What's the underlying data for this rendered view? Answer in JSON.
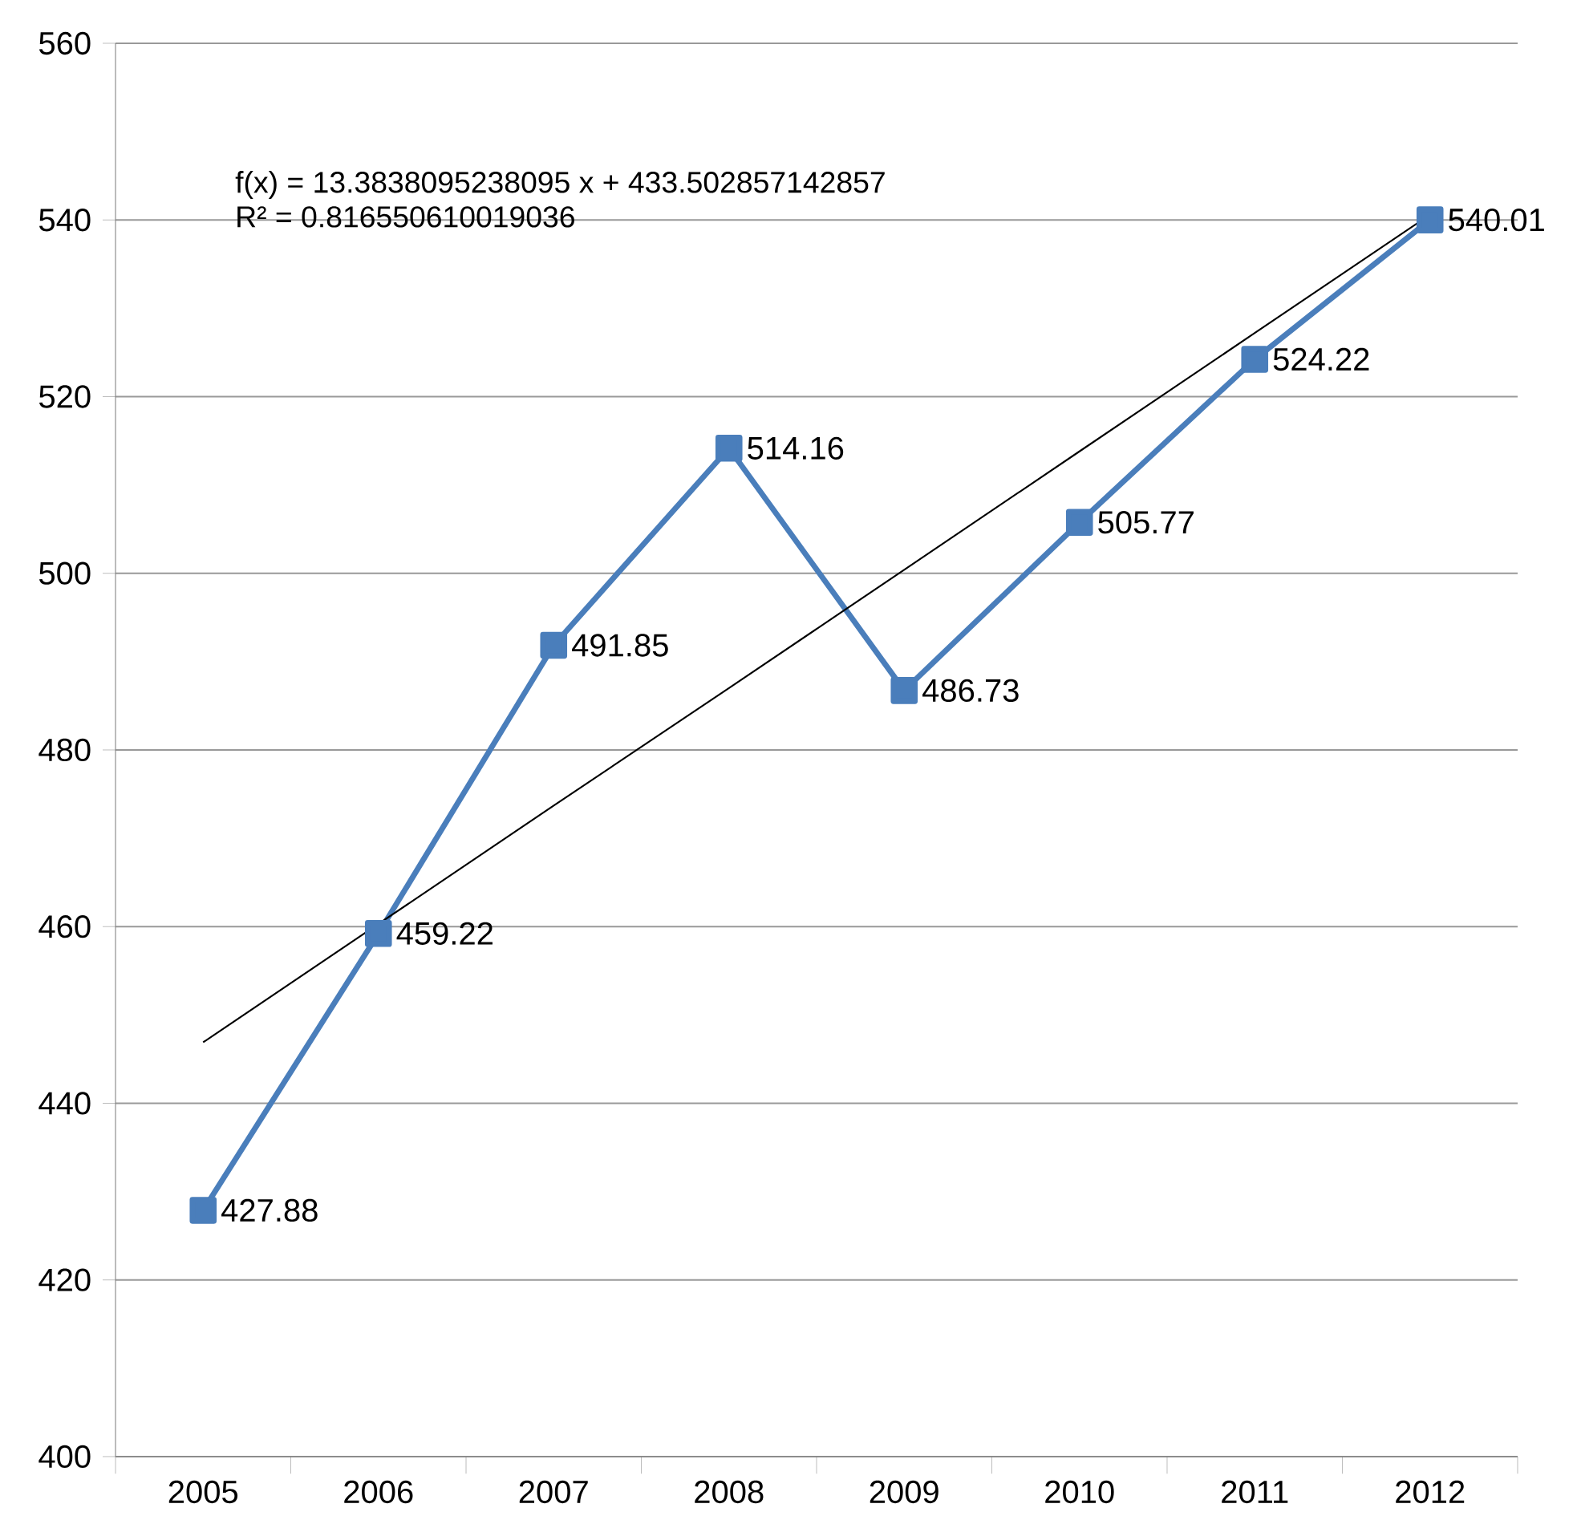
{
  "chart_data": {
    "type": "line",
    "categories": [
      "2005",
      "2006",
      "2007",
      "2008",
      "2009",
      "2010",
      "2011",
      "2012"
    ],
    "series": [
      {
        "color": "#4a7ebb",
        "values": [
          427.88,
          459.22,
          491.85,
          514.16,
          486.73,
          505.77,
          524.22,
          540.01
        ],
        "value_labels": [
          "427.88",
          "459.22",
          "491.85",
          "514.16",
          "486.73",
          "505.77",
          "524.22",
          "540.01"
        ],
        "marker": "square"
      },
      {
        "type": "line",
        "color": "#000000",
        "values": [
          446.9,
          460.3,
          473.7,
          487.0,
          500.4,
          513.8,
          527.2,
          540.6
        ],
        "marker": "none"
      }
    ],
    "ylim": [
      400,
      560
    ],
    "yticks": [
      400,
      420,
      440,
      460,
      480,
      500,
      520,
      540,
      560
    ],
    "grid": "y",
    "annotations": [
      "f(x) = 13.3838095238095 x + 433.502857142857",
      "R² = 0.816550610019036"
    ]
  }
}
